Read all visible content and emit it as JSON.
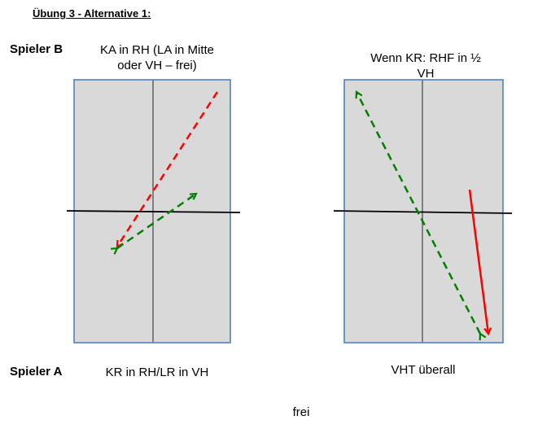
{
  "title": "Übung 3 - Alternative 1:",
  "player_b": {
    "label": "Spieler B",
    "left_desc_line1": "KA in RH (LA in Mitte",
    "left_desc_line2": "oder VH – frei)",
    "right_desc_line1": "Wenn KR: RHF in ½",
    "right_desc_line2": "VH"
  },
  "player_a": {
    "label": "Spieler A",
    "left_desc": "KR in RH/LR in VH",
    "right_desc": "VHT überall"
  },
  "footer": "frei",
  "colors": {
    "court_fill": "#d9d9d9",
    "court_border": "#4f81bd",
    "center_line": "#7f7f7f",
    "net": "#000000",
    "red_arrow": "#ff0000",
    "green_arrow": "#008000"
  }
}
